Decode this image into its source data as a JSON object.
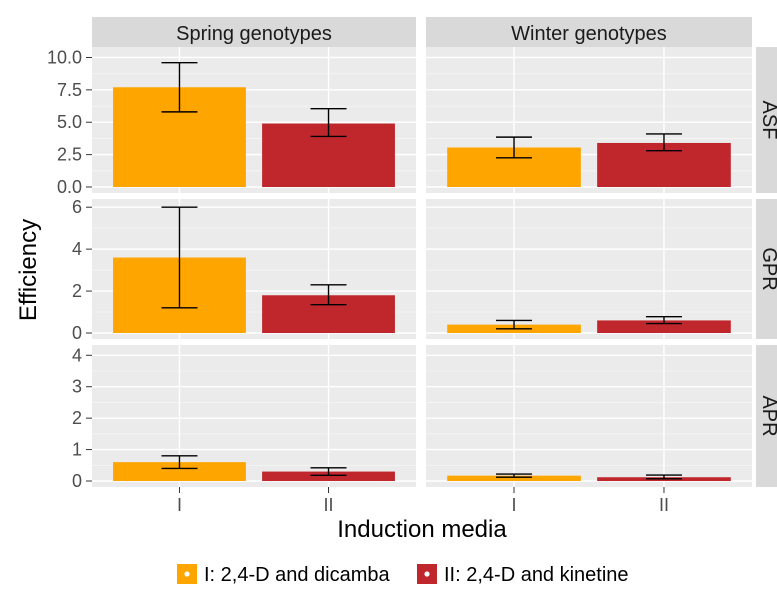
{
  "chart_data": {
    "type": "bar",
    "title": "",
    "xlabel": "Induction media",
    "ylabel": "Efficiency",
    "categories": [
      "I",
      "II"
    ],
    "columns": [
      "Spring genotypes",
      "Winter genotypes"
    ],
    "rows": [
      {
        "label": "ASF",
        "ylim": [
          0,
          10.5
        ],
        "yticks": [
          "0.0",
          "2.5",
          "5.0",
          "7.5",
          "10.0"
        ],
        "ytick_values": [
          0,
          2.5,
          5,
          7.5,
          10
        ]
      },
      {
        "label": "GPR",
        "ylim": [
          0,
          6.2
        ],
        "yticks": [
          "0",
          "2",
          "4",
          "6"
        ],
        "ytick_values": [
          0,
          2,
          4,
          6
        ]
      },
      {
        "label": "APR",
        "ylim": [
          0,
          4.2
        ],
        "yticks": [
          "0",
          "1",
          "2",
          "3",
          "4"
        ],
        "ytick_values": [
          0,
          1,
          2,
          3,
          4
        ]
      }
    ],
    "series": [
      {
        "name": "I: 2,4-D and dicamba",
        "color": "#FFA500",
        "values": {
          "ASF": {
            "Spring genotypes": 7.7,
            "Winter genotypes": 3.05
          },
          "GPR": {
            "Spring genotypes": 3.6,
            "Winter genotypes": 0.4
          },
          "APR": {
            "Spring genotypes": 0.6,
            "Winter genotypes": 0.17
          }
        },
        "error": {
          "ASF": {
            "Spring genotypes": [
              5.8,
              9.6
            ],
            "Winter genotypes": [
              2.25,
              3.85
            ]
          },
          "GPR": {
            "Spring genotypes": [
              1.2,
              6.0
            ],
            "Winter genotypes": [
              0.2,
              0.6
            ]
          },
          "APR": {
            "Spring genotypes": [
              0.4,
              0.8
            ],
            "Winter genotypes": [
              0.12,
              0.22
            ]
          }
        }
      },
      {
        "name": "II: 2,4-D and kinetine",
        "color": "#C0272D",
        "values": {
          "ASF": {
            "Spring genotypes": 4.9,
            "Winter genotypes": 3.4
          },
          "GPR": {
            "Spring genotypes": 1.8,
            "Winter genotypes": 0.6
          },
          "APR": {
            "Spring genotypes": 0.3,
            "Winter genotypes": 0.12
          }
        },
        "error": {
          "ASF": {
            "Spring genotypes": [
              3.9,
              6.05
            ],
            "Winter genotypes": [
              2.8,
              4.1
            ]
          },
          "GPR": {
            "Spring genotypes": [
              1.35,
              2.3
            ],
            "Winter genotypes": [
              0.45,
              0.78
            ]
          },
          "APR": {
            "Spring genotypes": [
              0.18,
              0.42
            ],
            "Winter genotypes": [
              0.07,
              0.19
            ]
          }
        }
      }
    ],
    "grid": true,
    "legend_position": "bottom",
    "colors": {
      "panel_bg": "#EBEBEB",
      "grid_major": "#FFFFFF",
      "strip_bg": "#D9D9D9",
      "text": "#1A1A1A",
      "axis_text": "#4D4D4D"
    }
  }
}
